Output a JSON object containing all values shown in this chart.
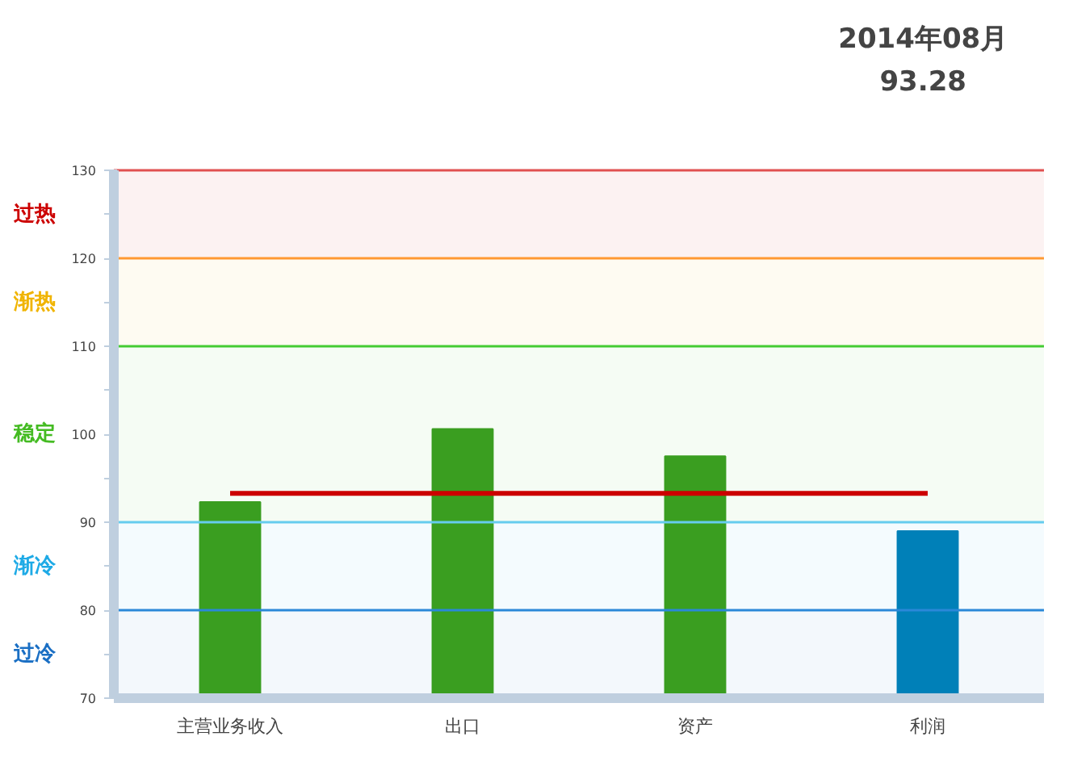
{
  "chart_data": {
    "type": "bar",
    "title": "2014年08月",
    "subtitle": "93.28",
    "categories": [
      "主营业务收入",
      "出口",
      "资产",
      "利润"
    ],
    "values": [
      92.3,
      100.6,
      97.5,
      89.0
    ],
    "colors": [
      "#3a9e20",
      "#3a9e20",
      "#3a9e20",
      "#0080b8"
    ],
    "ylim": [
      70,
      130
    ],
    "yticks": [
      70,
      {
        "value": 75,
        "label": null
      },
      80,
      {
        "value": 85,
        "label": null
      },
      90,
      {
        "value": 95,
        "label": null
      },
      100,
      {
        "value": 105,
        "label": null
      },
      110,
      {
        "value": 115,
        "label": null
      },
      120,
      {
        "value": 125,
        "label": null
      },
      130
    ],
    "grid": false,
    "ref_lines": [
      {
        "axis": "y",
        "value": 130,
        "label": null,
        "color": "#e05050"
      },
      {
        "axis": "y",
        "value": 120,
        "label": null,
        "color": "#ff9933"
      },
      {
        "axis": "y",
        "value": 110,
        "label": null,
        "color": "#44cc33"
      },
      {
        "axis": "y",
        "value": 90,
        "label": null,
        "color": "#66ccee"
      },
      {
        "axis": "y",
        "value": 80,
        "label": null,
        "color": "#2a88d8"
      },
      {
        "axis": "y",
        "value": 93.28,
        "label": null,
        "color": "#cc0000",
        "line_style": "solid"
      }
    ],
    "bands": [
      {
        "axis": "y",
        "from": 120,
        "to": 130,
        "label": "过热",
        "color": "#cc0000"
      },
      {
        "axis": "y",
        "from": 110,
        "to": 120,
        "label": "渐热",
        "color": "#f0b400"
      },
      {
        "axis": "y",
        "from": 90,
        "to": 110,
        "label": "稳定",
        "color": "#44bb22"
      },
      {
        "axis": "y",
        "from": 80,
        "to": 90,
        "label": "渐冷",
        "color": "#1eaae6"
      },
      {
        "axis": "y",
        "from": 70,
        "to": 80,
        "label": "过冷",
        "color": "#1a6fc4"
      }
    ]
  }
}
